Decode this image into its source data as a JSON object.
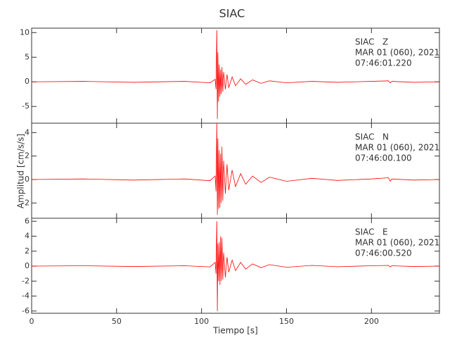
{
  "chart_data": [
    {
      "type": "line",
      "title": "SIAC",
      "color": "#ff0000",
      "annotation": [
        "SIAC   Z",
        "MAR 01 (060), 2021",
        "07:46:01.220"
      ],
      "x": [
        0,
        30,
        60,
        90,
        105,
        108,
        108.5,
        109,
        109.3,
        109.6,
        110,
        110.4,
        110.8,
        111.2,
        111.6,
        112,
        112.5,
        113,
        114,
        115,
        116,
        118,
        120,
        123,
        126,
        130,
        135,
        140,
        150,
        165,
        180,
        200,
        210,
        211,
        212,
        225,
        240
      ],
      "values": [
        0,
        0.1,
        -0.1,
        0.1,
        -0.2,
        0.5,
        -1.5,
        10.5,
        -7.5,
        6,
        -4,
        3.5,
        -3,
        2.5,
        -2.5,
        3,
        -2,
        2,
        -1.5,
        1.5,
        -1.2,
        1,
        -0.8,
        0.6,
        -0.5,
        0.4,
        -0.3,
        0.2,
        -0.2,
        0.1,
        -0.1,
        0.1,
        0.2,
        -0.2,
        0.1,
        -0.1,
        0
      ],
      "ylim": [
        -8.4,
        10.9
      ],
      "yticks": [
        -5,
        0,
        5,
        10
      ]
    },
    {
      "type": "line",
      "y_label": "Amplitud [cm/s/s]",
      "color": "#ff0000",
      "annotation": [
        "SIAC   N",
        "MAR 01 (060), 2021",
        "07:46:00.100"
      ],
      "x": [
        0,
        30,
        60,
        90,
        105,
        108,
        108.5,
        109,
        109.3,
        109.6,
        110,
        110.4,
        110.8,
        111.2,
        111.6,
        112,
        112.5,
        113,
        114,
        115,
        116,
        118,
        120,
        123,
        126,
        130,
        135,
        140,
        150,
        165,
        180,
        200,
        210,
        211,
        212,
        225,
        240
      ],
      "values": [
        0,
        0.05,
        -0.05,
        0.05,
        -0.1,
        0.3,
        -1,
        4.8,
        -3,
        3.5,
        -2.5,
        2.5,
        -2.4,
        2.2,
        -2,
        2.8,
        -1.8,
        1.6,
        -1.2,
        1.3,
        -0.9,
        0.8,
        -0.6,
        0.5,
        -0.4,
        0.3,
        -0.25,
        0.2,
        -0.15,
        0.1,
        -0.08,
        0.05,
        0.15,
        -0.15,
        0.05,
        -0.05,
        0
      ],
      "ylim": [
        -3.3,
        4.8
      ],
      "yticks": [
        -2,
        0,
        2,
        4
      ]
    },
    {
      "type": "line",
      "x_label": "Tiempo [s]",
      "color": "#ff0000",
      "annotation": [
        "SIAC   E",
        "MAR 01 (060), 2021",
        "07:46:00.520"
      ],
      "x": [
        0,
        30,
        60,
        90,
        105,
        108,
        108.5,
        109,
        109.3,
        109.6,
        110,
        110.4,
        110.8,
        111.2,
        111.6,
        112,
        112.5,
        113,
        114,
        115,
        116,
        118,
        120,
        123,
        126,
        130,
        135,
        140,
        150,
        165,
        180,
        200,
        210,
        211,
        212,
        225,
        240
      ],
      "values": [
        0,
        0.05,
        -0.05,
        0.05,
        -0.1,
        0.5,
        -1,
        6,
        -6,
        3,
        -2,
        3.2,
        -2.5,
        4,
        -2,
        3.8,
        -1.8,
        1.8,
        -1.5,
        1.2,
        -0.8,
        0.8,
        -0.6,
        0.5,
        -0.4,
        0.3,
        -0.2,
        0.2,
        -0.15,
        0.1,
        -0.08,
        0.05,
        0.1,
        -0.1,
        0.05,
        -0.05,
        0
      ],
      "ylim": [
        -6.3,
        6.4
      ],
      "yticks": [
        -6,
        -4,
        -2,
        0,
        2,
        4,
        6
      ],
      "xlim": [
        0,
        240
      ],
      "xticks": [
        0,
        50,
        100,
        150,
        200
      ]
    }
  ]
}
